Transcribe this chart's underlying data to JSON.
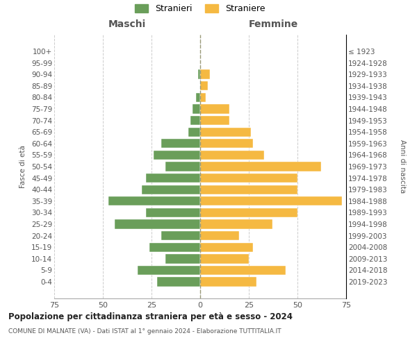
{
  "age_groups": [
    "0-4",
    "5-9",
    "10-14",
    "15-19",
    "20-24",
    "25-29",
    "30-34",
    "35-39",
    "40-44",
    "45-49",
    "50-54",
    "55-59",
    "60-64",
    "65-69",
    "70-74",
    "75-79",
    "80-84",
    "85-89",
    "90-94",
    "95-99",
    "100+"
  ],
  "birth_years": [
    "2019-2023",
    "2014-2018",
    "2009-2013",
    "2004-2008",
    "1999-2003",
    "1994-1998",
    "1989-1993",
    "1984-1988",
    "1979-1983",
    "1974-1978",
    "1969-1973",
    "1964-1968",
    "1959-1963",
    "1954-1958",
    "1949-1953",
    "1944-1948",
    "1939-1943",
    "1934-1938",
    "1929-1933",
    "1924-1928",
    "≤ 1923"
  ],
  "maschi": [
    22,
    32,
    18,
    26,
    20,
    44,
    28,
    47,
    30,
    28,
    18,
    24,
    20,
    6,
    5,
    4,
    2,
    0,
    1,
    0,
    0
  ],
  "femmine": [
    29,
    44,
    25,
    27,
    20,
    37,
    50,
    73,
    50,
    50,
    62,
    33,
    27,
    26,
    15,
    15,
    3,
    4,
    5,
    0,
    0
  ],
  "maschi_color": "#6a9e5a",
  "femmine_color": "#f5b942",
  "background_color": "#ffffff",
  "grid_color": "#cccccc",
  "title": "Popolazione per cittadinanza straniera per età e sesso - 2024",
  "subtitle": "COMUNE DI MALNATE (VA) - Dati ISTAT al 1° gennaio 2024 - Elaborazione TUTTITALIA.IT",
  "header_left": "Maschi",
  "header_right": "Femmine",
  "ylabel_left": "Fasce di età",
  "ylabel_right": "Anni di nascita",
  "legend_maschi": "Stranieri",
  "legend_femmine": "Straniere",
  "xlim": 75,
  "bar_height": 0.8
}
